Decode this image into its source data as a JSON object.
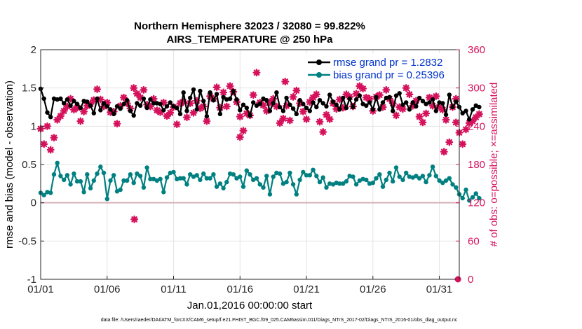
{
  "chart_data": {
    "type": "line",
    "title": "Northern Hemisphere 32023 / 32080 = 99.822%",
    "subtitle": "AIRS_TEMPERATURE @ 250 hPa",
    "xlabel": "Jan.01,2016 00:00:00 start",
    "ylabel": "rmse and bias (model - observation)",
    "ylabel_right": "# of obs: o=possible; ×=assimilated",
    "xlim": [
      0,
      31.5
    ],
    "ylim": [
      -1,
      2
    ],
    "ylim_right": [
      0,
      360
    ],
    "grid": true,
    "legend_position": "top-right",
    "x_ticks": [
      {
        "value": 0,
        "label": "01/01"
      },
      {
        "value": 5,
        "label": "01/06"
      },
      {
        "value": 10,
        "label": "01/11"
      },
      {
        "value": 15,
        "label": "01/16"
      },
      {
        "value": 20,
        "label": "01/21"
      },
      {
        "value": 25,
        "label": "01/26"
      },
      {
        "value": 30,
        "label": "01/31"
      }
    ],
    "y_ticks": [
      "-1",
      "-0.5",
      "0",
      "0.5",
      "1",
      "1.5",
      "2"
    ],
    "y_ticks_right": [
      "0",
      "60",
      "120",
      "180",
      "240",
      "300",
      "360"
    ],
    "series": [
      {
        "name": "rmse grand pr = 1.2832",
        "color": "#000000",
        "marker": "filled-circle",
        "x_start": 0,
        "x_step": 0.25,
        "values": [
          1.49,
          1.36,
          1.18,
          1.12,
          1.36,
          1.35,
          1.36,
          1.3,
          1.35,
          1.27,
          1.33,
          1.29,
          1.24,
          1.33,
          1.32,
          1.27,
          1.17,
          1.36,
          1.21,
          1.3,
          1.26,
          1.22,
          1.16,
          1.26,
          1.23,
          1.29,
          1.34,
          1.2,
          1.14,
          1.3,
          1.27,
          1.36,
          1.24,
          1.35,
          1.3,
          1.3,
          1.29,
          1.21,
          1.26,
          1.31,
          1.26,
          1.24,
          1.16,
          1.44,
          1.2,
          1.37,
          1.48,
          1.22,
          1.46,
          1.33,
          1.13,
          1.44,
          1.34,
          1.42,
          1.16,
          1.38,
          1.35,
          1.36,
          1.46,
          1.35,
          1.21,
          1.28,
          1.24,
          1.14,
          1.31,
          1.27,
          1.29,
          1.36,
          1.34,
          1.2,
          1.3,
          1.44,
          1.25,
          1.2,
          1.37,
          1.28,
          1.23,
          1.16,
          1.34,
          1.29,
          1.24,
          1.2,
          1.31,
          1.25,
          1.34,
          1.3,
          1.26,
          1.41,
          1.32,
          1.28,
          1.22,
          1.37,
          1.24,
          1.36,
          1.25,
          1.35,
          1.4,
          1.29,
          1.27,
          1.31,
          1.22,
          1.38,
          1.22,
          1.31,
          1.37,
          1.38,
          1.2,
          1.4,
          1.43,
          1.28,
          1.31,
          1.22,
          1.31,
          1.26,
          1.37,
          1.33,
          1.29,
          1.31,
          1.35,
          1.2,
          1.31,
          1.3,
          1.15,
          1.41,
          1.25,
          1.32,
          1.25,
          1.17,
          1.2,
          1.09,
          1.22,
          1.27,
          1.25
        ]
      },
      {
        "name": "bias grand pr = 0.25396",
        "color": "#008080",
        "marker": "filled-circle",
        "x_start": 0,
        "x_step": 0.25,
        "values": [
          0.13,
          0.1,
          0.14,
          0.13,
          0.37,
          0.52,
          0.35,
          0.3,
          0.36,
          0.24,
          0.38,
          0.28,
          0.28,
          0.14,
          0.37,
          0.19,
          0.29,
          0.38,
          0.47,
          0.39,
          0.05,
          0.29,
          0.36,
          0.15,
          0.17,
          0.29,
          0.29,
          0.37,
          0.26,
          0.38,
          0.35,
          0.2,
          0.46,
          0.31,
          0.31,
          0.29,
          0.31,
          0.14,
          0.33,
          0.39,
          0.4,
          0.31,
          0.32,
          0.32,
          0.24,
          0.37,
          0.34,
          0.36,
          0.3,
          0.38,
          0.32,
          0.32,
          0.37,
          0.21,
          0.25,
          0.19,
          0.27,
          0.38,
          0.37,
          0.32,
          0.34,
          0.21,
          0.42,
          0.37,
          0.3,
          0.32,
          0.24,
          0.2,
          0.35,
          0.11,
          0.34,
          0.39,
          0.38,
          0.25,
          0.27,
          0.39,
          0.24,
          0.11,
          0.3,
          0.4,
          0.36,
          0.36,
          0.43,
          0.35,
          0.27,
          0.33,
          0.2,
          0.25,
          0.24,
          0.26,
          0.25,
          0.25,
          0.28,
          0.35,
          0.34,
          0.24,
          0.29,
          0.31,
          0.3,
          0.25,
          0.26,
          0.32,
          0.37,
          0.21,
          0.3,
          0.39,
          0.28,
          0.46,
          0.34,
          0.3,
          0.39,
          0.34,
          0.33,
          0.35,
          0.32,
          0.35,
          0.27,
          0.36,
          0.47,
          0.35,
          0.29,
          0.26,
          0.29,
          0.32,
          0.24,
          0.2,
          0.11,
          0.06,
          0.17,
          0.03,
          0.07,
          0.12,
          0.06
        ]
      },
      {
        "name": "",
        "color": "#d6115c",
        "marker": "asterisk",
        "axis": "right",
        "x_start": 0,
        "x_step": 0.25,
        "values": [
          236,
          212,
          240,
          203,
          222,
          250,
          256,
          264,
          271,
          283,
          266,
          269,
          248,
          263,
          272,
          275,
          281,
          298,
          282,
          271,
          277,
          262,
          263,
          244,
          272,
          285,
          276,
          268,
          300,
          291,
          285,
          297,
          274,
          271,
          283,
          265,
          262,
          277,
          256,
          261,
          270,
          243,
          276,
          278,
          254,
          276,
          261,
          280,
          268,
          271,
          248,
          287,
          283,
          301,
          269,
          293,
          271,
          303,
          294,
          278,
          255,
          233,
          260,
          257,
          289,
          324,
          277,
          273,
          264,
          277,
          283,
          271,
          245,
          252,
          272,
          249,
          286,
          296,
          276,
          263,
          251,
          278,
          285,
          290,
          247,
          231,
          258,
          251,
          276,
          267,
          282,
          269,
          290,
          286,
          271,
          291,
          303,
          299,
          285,
          283,
          264,
          286,
          289,
          270,
          297,
          283,
          276,
          257,
          270,
          267,
          300,
          290,
          272,
          280,
          255,
          246,
          260,
          285,
          272,
          287,
          270,
          266,
          250,
          215,
          270,
          283,
          230,
          212,
          235,
          245,
          248,
          254,
          259
        ],
        "extra_points": [
          {
            "x": 7.05,
            "y": 94
          },
          {
            "x": 27.42,
            "y": 329
          },
          {
            "x": 18.4,
            "y": 310
          },
          {
            "x": 15.0,
            "y": 223
          },
          {
            "x": 30.35,
            "y": 200
          },
          {
            "x": 31.25,
            "y": 246
          },
          {
            "x": 31.4,
            "y": 0
          }
        ]
      }
    ],
    "reference_line": {
      "y": 0,
      "color": "#d7b0b8"
    },
    "footer": "data file: /Users/raeder/DAI/ATM_forcXX/CAM6_setup/f.e21.FHIST_BGC.f09_025.CAM6assim.011/Diags_NTrS_2017-02/Diags_NTrS_2016-01/obs_diag_output.nc"
  }
}
